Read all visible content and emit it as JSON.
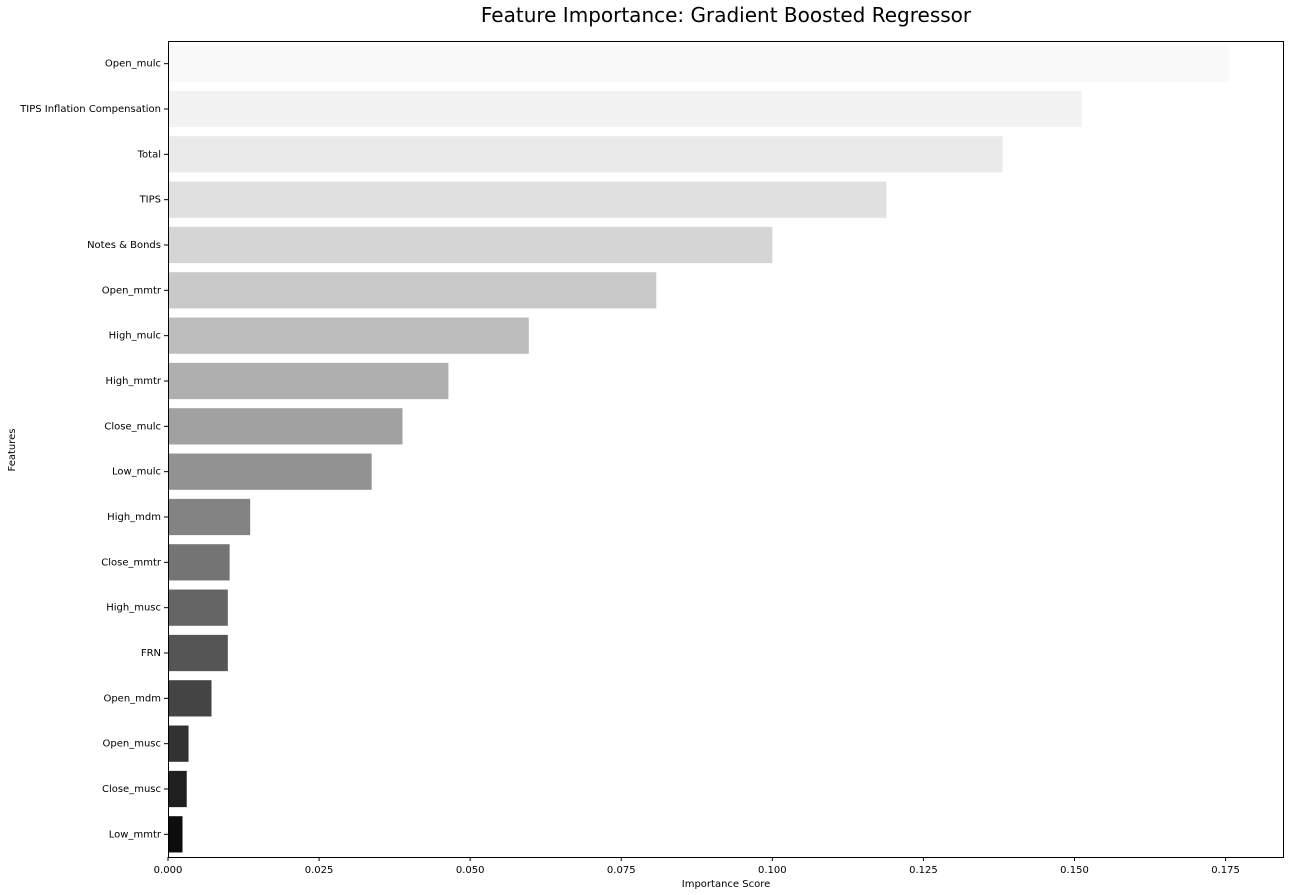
{
  "chart_data": {
    "type": "bar",
    "orientation": "horizontal",
    "title": "Feature Importance: Gradient Boosted Regressor",
    "xlabel": "Importance Score",
    "ylabel": "Features",
    "xlim": [
      0,
      0.1845
    ],
    "xticks": [
      "0.000",
      "0.025",
      "0.050",
      "0.075",
      "0.100",
      "0.125",
      "0.150",
      "0.175"
    ],
    "grid": false,
    "legend": "none",
    "categories": [
      "Open_mulc",
      "TIPS Inflation Compensation",
      "Total",
      "TIPS",
      "Notes & Bonds",
      "Open_mmtr",
      "High_mulc",
      "High_mmtr",
      "Close_mulc",
      "Low_mulc",
      "High_mdm",
      "Close_mmtr",
      "High_musc",
      "FRN",
      "Open_mdm",
      "Open_musc",
      "Close_musc",
      "Low_mmtr"
    ],
    "values": [
      0.1756,
      0.1512,
      0.1381,
      0.1189,
      0.1,
      0.0808,
      0.0597,
      0.0464,
      0.0388,
      0.0337,
      0.0136,
      0.0102,
      0.0099,
      0.0099,
      0.0072,
      0.0034,
      0.0031,
      0.0024
    ],
    "colors": [
      "#f9f9f9",
      "#f2f2f2",
      "#eaeaea",
      "#e0e0e0",
      "#d5d5d5",
      "#c9c9c9",
      "#bcbcbc",
      "#afafaf",
      "#a1a1a1",
      "#929292",
      "#838383",
      "#747474",
      "#656565",
      "#555555",
      "#444444",
      "#323232",
      "#1f1f1f",
      "#0d0d0d"
    ]
  }
}
